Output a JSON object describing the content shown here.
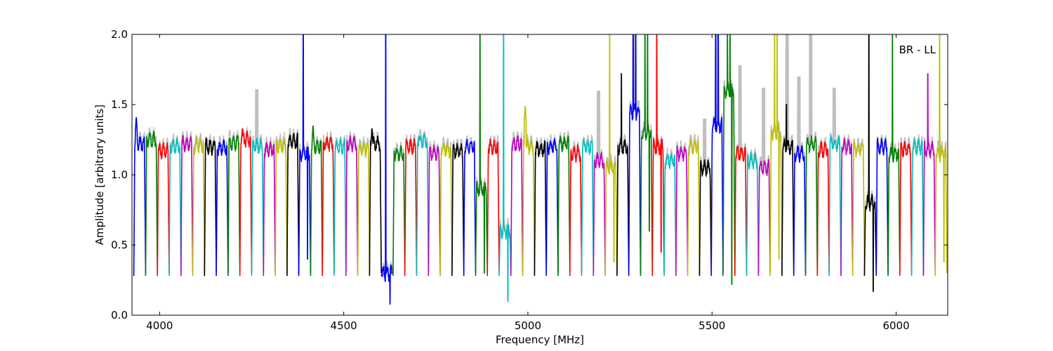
{
  "chart_data": {
    "type": "line",
    "title": "",
    "annotation": "BR - LL",
    "xlabel": "Frequency [MHz]",
    "ylabel": "Amplitude [arbitrary units]",
    "xlim": [
      3925,
      6140
    ],
    "ylim": [
      0.0,
      2.0
    ],
    "x_ticks": [
      4000,
      4500,
      5000,
      5500,
      6000
    ],
    "x_tick_labels": [
      "4000",
      "4500",
      "5000",
      "5500",
      "6000"
    ],
    "y_ticks": [
      0.0,
      0.5,
      1.0,
      1.5,
      2.0
    ],
    "y_tick_labels": [
      "0.0",
      "0.5",
      "1.0",
      "1.5",
      "2.0"
    ],
    "grid": false,
    "background_trace_color": "#bfbfbf",
    "color_cycle": [
      "#0000ff",
      "#008000",
      "#ff0000",
      "#00bfbf",
      "#bf00bf",
      "#bfbf00",
      "#000000"
    ],
    "window_width_mhz": 32,
    "windows": [
      {
        "start": 3930,
        "level": 1.22,
        "peak": 1.42
      },
      {
        "start": 3962,
        "level": 1.25
      },
      {
        "start": 3994,
        "level": 1.17
      },
      {
        "start": 4026,
        "level": 1.2
      },
      {
        "start": 4058,
        "level": 1.22
      },
      {
        "start": 4090,
        "level": 1.21
      },
      {
        "start": 4122,
        "level": 1.2
      },
      {
        "start": 4154,
        "level": 1.19
      },
      {
        "start": 4186,
        "level": 1.23
      },
      {
        "start": 4218,
        "level": 1.25,
        "peak": 1.34
      },
      {
        "start": 4250,
        "level": 1.2,
        "bg_peak": 1.61
      },
      {
        "start": 4282,
        "level": 1.18
      },
      {
        "start": 4314,
        "level": 1.21
      },
      {
        "start": 4346,
        "level": 1.24
      },
      {
        "start": 4378,
        "level": 1.15,
        "spike": 2.0,
        "dip": 0.4
      },
      {
        "start": 4410,
        "level": 1.2,
        "peak": 1.36
      },
      {
        "start": 4442,
        "level": 1.22
      },
      {
        "start": 4474,
        "level": 1.2
      },
      {
        "start": 4506,
        "level": 1.22
      },
      {
        "start": 4538,
        "level": 1.18
      },
      {
        "start": 4570,
        "level": 1.22,
        "peak": 1.34
      },
      {
        "start": 4602,
        "level": 0.3,
        "spike": 2.0,
        "dip": 0.08
      },
      {
        "start": 4634,
        "level": 1.15
      },
      {
        "start": 4666,
        "level": 1.2
      },
      {
        "start": 4698,
        "level": 1.24,
        "peak": 1.29
      },
      {
        "start": 4730,
        "level": 1.15
      },
      {
        "start": 4762,
        "level": 1.18
      },
      {
        "start": 4794,
        "level": 1.17
      },
      {
        "start": 4826,
        "level": 1.2
      },
      {
        "start": 4858,
        "level": 0.9,
        "spike": 2.0,
        "dip": 0.3
      },
      {
        "start": 4890,
        "level": 1.2
      },
      {
        "start": 4922,
        "level": 0.6,
        "spike": 2.0,
        "dip": 0.1
      },
      {
        "start": 4954,
        "level": 1.22
      },
      {
        "start": 4986,
        "level": 1.2,
        "peak": 1.5
      },
      {
        "start": 5018,
        "level": 1.18
      },
      {
        "start": 5050,
        "level": 1.2
      },
      {
        "start": 5082,
        "level": 1.22
      },
      {
        "start": 5114,
        "level": 1.15
      },
      {
        "start": 5146,
        "level": 1.2
      },
      {
        "start": 5178,
        "level": 1.1,
        "bg_peak": 1.6
      },
      {
        "start": 5210,
        "level": 1.05,
        "spike": 2.0,
        "dip": 0.38
      },
      {
        "start": 5242,
        "level": 1.2,
        "spike": 1.72
      },
      {
        "start": 5274,
        "level": 1.45,
        "spike": 2.0,
        "bg_peak": 2.0
      },
      {
        "start": 5306,
        "level": 1.3,
        "spike": 2.0,
        "dip": 0.6
      },
      {
        "start": 5338,
        "level": 1.2,
        "spike": 2.0,
        "dip": 0.45
      },
      {
        "start": 5370,
        "level": 1.1
      },
      {
        "start": 5402,
        "level": 1.15
      },
      {
        "start": 5434,
        "level": 1.2
      },
      {
        "start": 5466,
        "level": 1.05,
        "bg_peak": 1.4
      },
      {
        "start": 5498,
        "level": 1.35,
        "spike": 2.0,
        "bg_peak": 2.0
      },
      {
        "start": 5530,
        "level": 1.6,
        "spike": 2.0,
        "dip": 0.22
      },
      {
        "start": 5562,
        "level": 1.15,
        "bg_peak": 1.78
      },
      {
        "start": 5594,
        "level": 1.1
      },
      {
        "start": 5626,
        "level": 1.05,
        "bg_peak": 1.62
      },
      {
        "start": 5658,
        "level": 1.3,
        "spike": 2.0,
        "dip": 0.4
      },
      {
        "start": 5690,
        "level": 1.2,
        "spike": 1.5,
        "bg_peak": 2.0
      },
      {
        "start": 5722,
        "level": 1.15,
        "bg_peak": 1.7
      },
      {
        "start": 5754,
        "level": 1.22,
        "bg_peak": 2.0
      },
      {
        "start": 5786,
        "level": 1.18
      },
      {
        "start": 5818,
        "level": 1.22,
        "bg_peak": 1.62
      },
      {
        "start": 5850,
        "level": 1.2
      },
      {
        "start": 5882,
        "level": 1.18
      },
      {
        "start": 5914,
        "level": 0.8,
        "spike": 2.0,
        "dip": 0.17
      },
      {
        "start": 5946,
        "level": 1.2
      },
      {
        "start": 5978,
        "level": 1.15,
        "spike": 2.0
      },
      {
        "start": 6010,
        "level": 1.18
      },
      {
        "start": 6042,
        "level": 1.2
      },
      {
        "start": 6074,
        "level": 1.18,
        "spike": 1.72
      },
      {
        "start": 6106,
        "level": 1.15,
        "spike": 2.0,
        "dip": 0.38
      }
    ]
  }
}
